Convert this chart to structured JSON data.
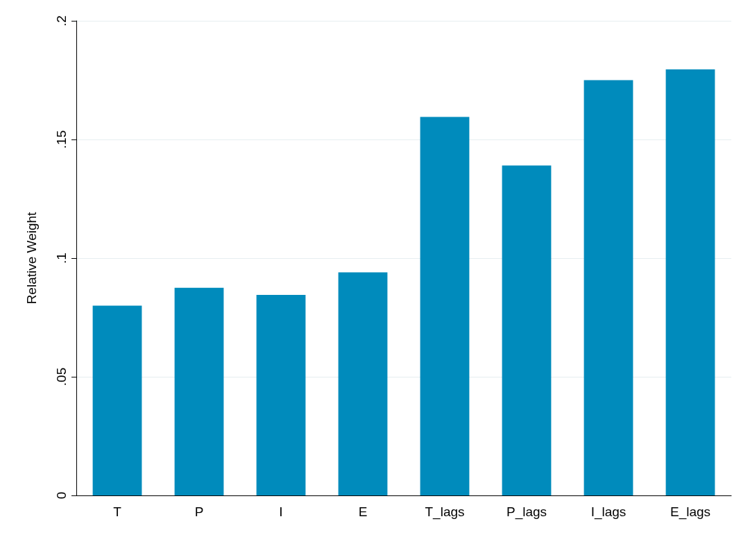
{
  "chart_data": {
    "type": "bar",
    "ylabel": "Relative Weight",
    "categories": [
      "T",
      "P",
      "I",
      "E",
      "T_lags",
      "P_lags",
      "I_lags",
      "E_lags"
    ],
    "values": [
      0.08,
      0.0875,
      0.0845,
      0.094,
      0.1595,
      0.139,
      0.175,
      0.1795
    ],
    "color": "#008bbc",
    "ylim": [
      0,
      0.2
    ],
    "yticks": [
      0,
      {
        "value": 0.05,
        "label": ".05"
      },
      {
        "value": 0.1,
        "label": ".1"
      },
      {
        "value": 0.15,
        "label": ".15"
      },
      {
        "value": 0.2,
        "label": ".2"
      }
    ],
    "grid": "y"
  }
}
